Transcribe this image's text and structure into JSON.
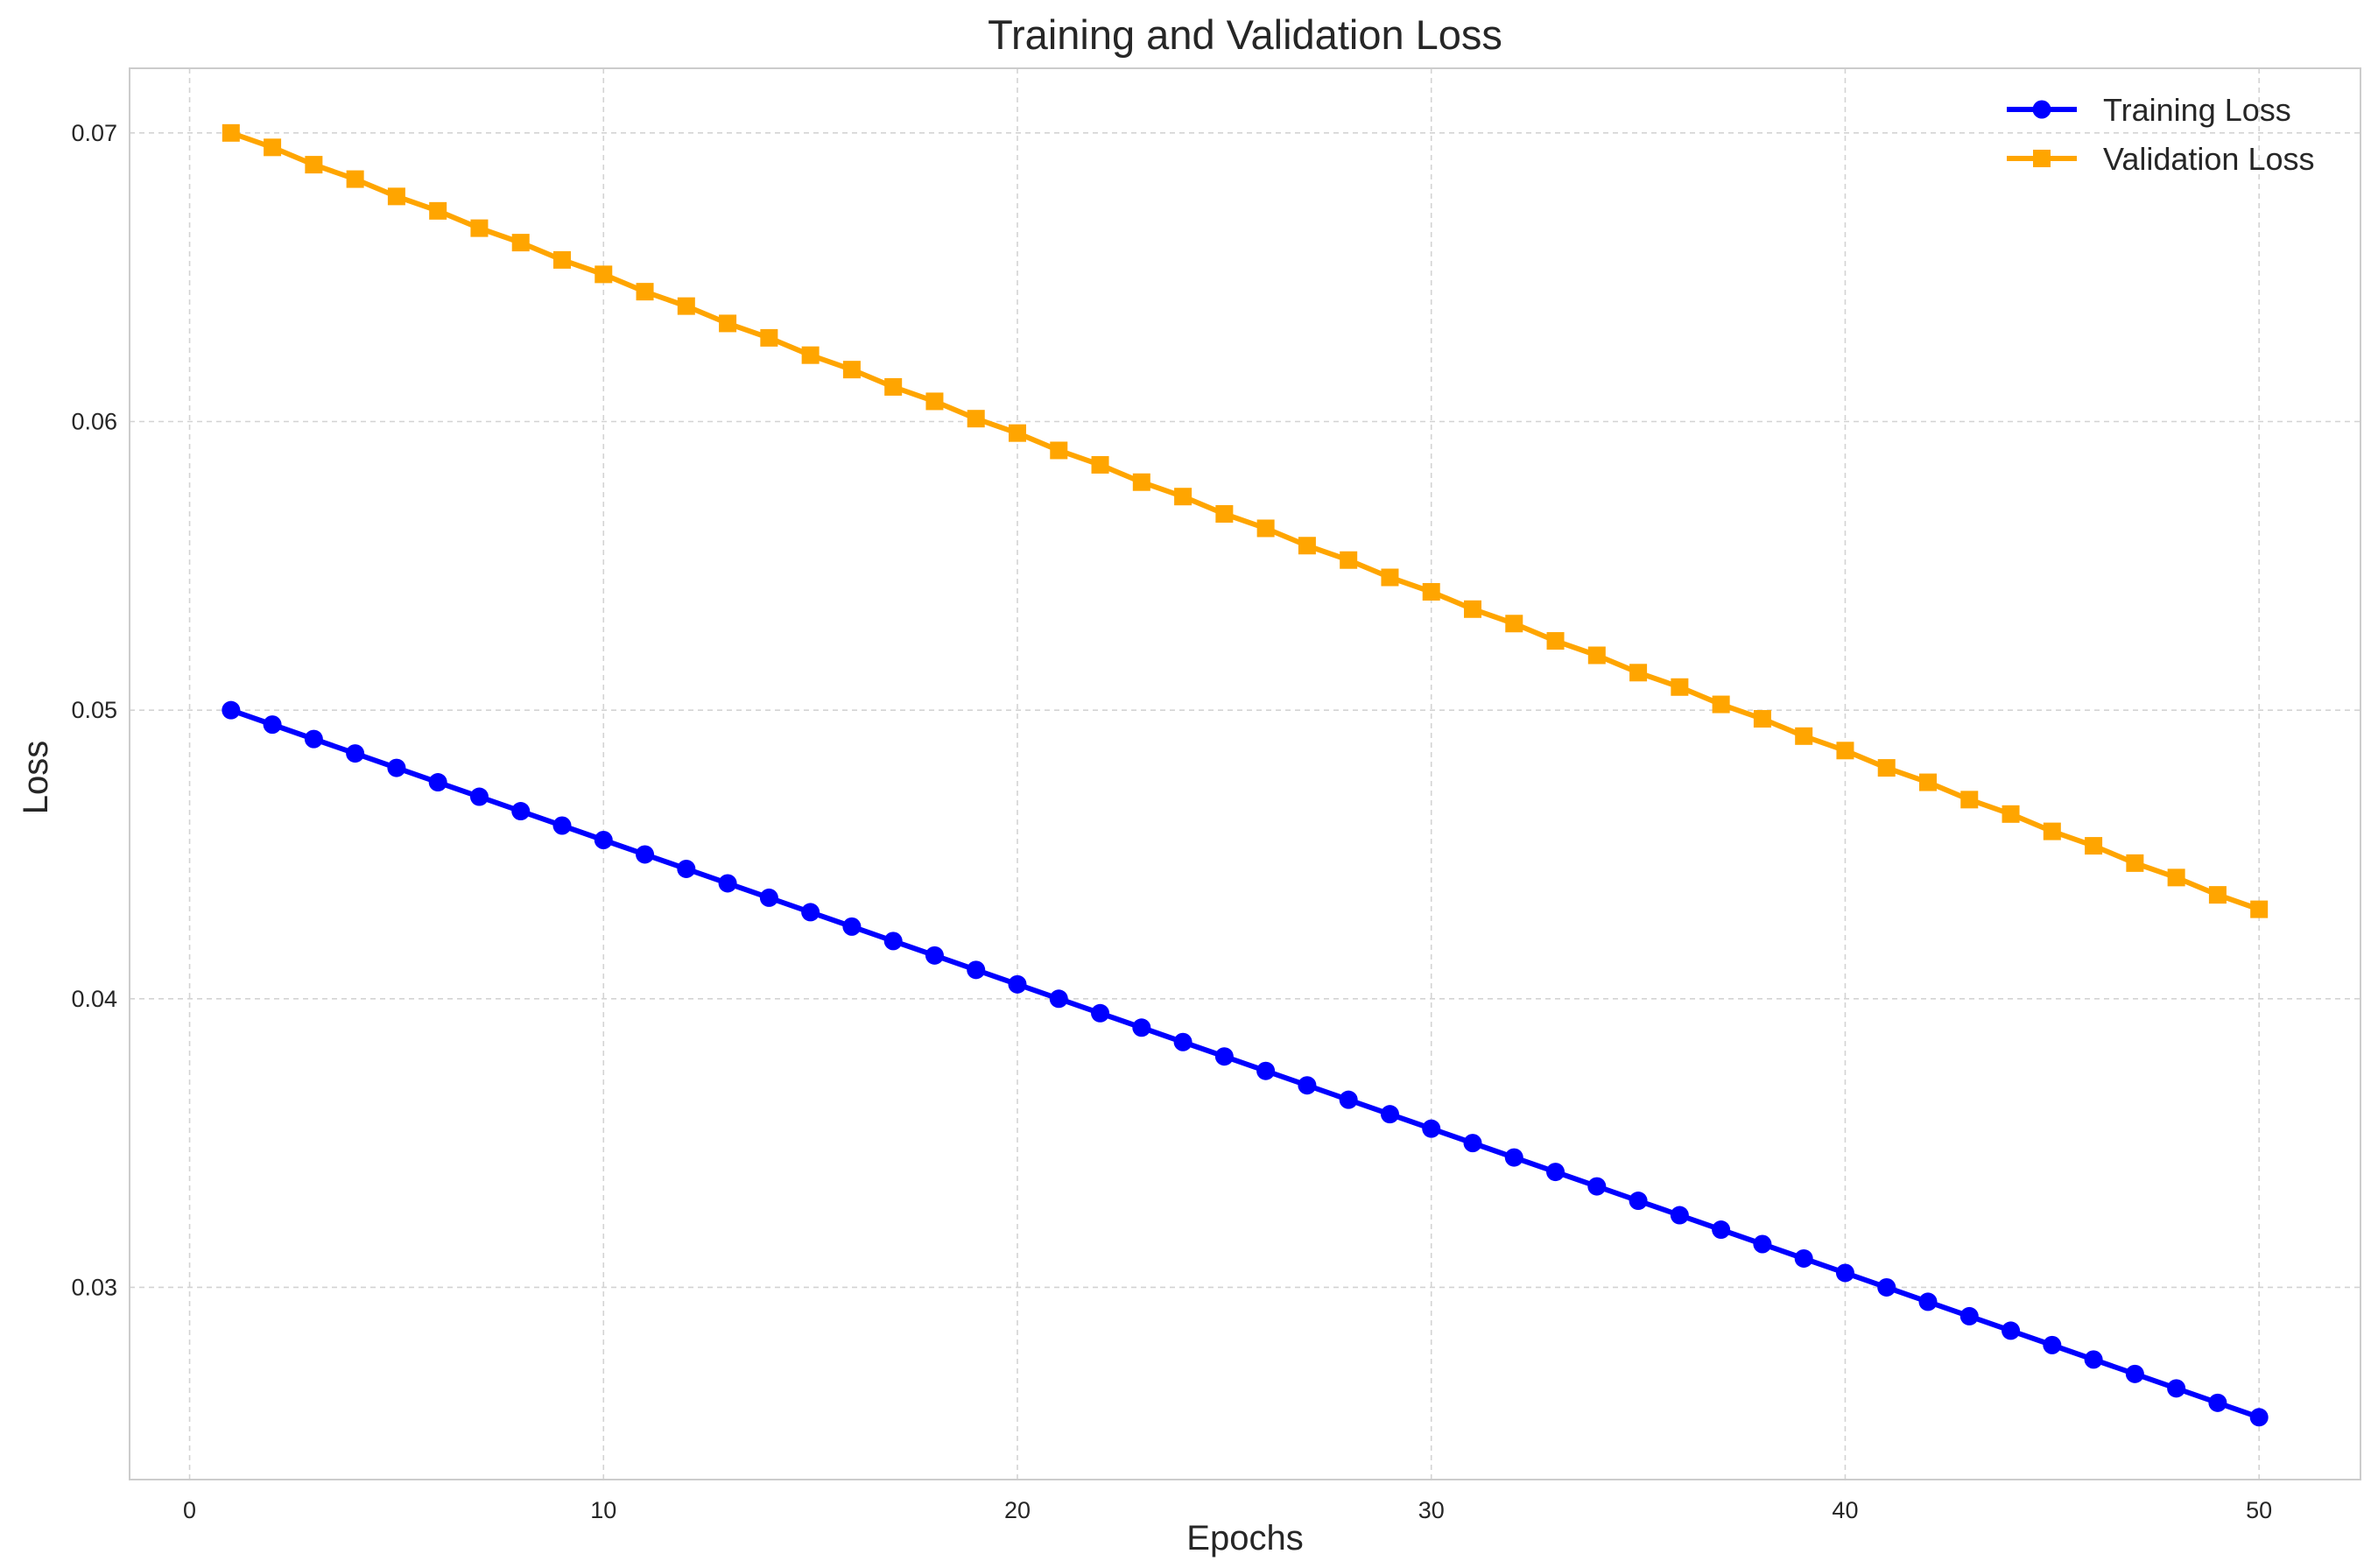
{
  "chart_data": {
    "type": "line",
    "title": "Training and Validation Loss",
    "xlabel": "Epochs",
    "ylabel": "Loss",
    "xlim": [
      -1.45,
      52.45
    ],
    "ylim": [
      0.02334,
      0.07224
    ],
    "xticks": [
      0,
      10,
      20,
      30,
      40,
      50
    ],
    "yticks": [
      0.03,
      0.04,
      0.05,
      0.06,
      0.07
    ],
    "xtick_labels": [
      "0",
      "10",
      "20",
      "30",
      "40",
      "50"
    ],
    "ytick_labels": [
      "0.03",
      "0.04",
      "0.05",
      "0.06",
      "0.07"
    ],
    "grid": true,
    "legend_position": "top-right",
    "series": [
      {
        "name": "Training Loss",
        "color": "#0000ff",
        "marker": "circle",
        "x": [
          1,
          2,
          3,
          4,
          5,
          6,
          7,
          8,
          9,
          10,
          11,
          12,
          13,
          14,
          15,
          16,
          17,
          18,
          19,
          20,
          21,
          22,
          23,
          24,
          25,
          26,
          27,
          28,
          29,
          30,
          31,
          32,
          33,
          34,
          35,
          36,
          37,
          38,
          39,
          40,
          41,
          42,
          43,
          44,
          45,
          46,
          47,
          48,
          49,
          50
        ],
        "values": [
          0.05,
          0.0495,
          0.049,
          0.0485,
          0.048,
          0.0475,
          0.047,
          0.0465,
          0.046,
          0.0455,
          0.045,
          0.0445,
          0.044,
          0.0435,
          0.043,
          0.0425,
          0.042,
          0.0415,
          0.041,
          0.0405,
          0.04,
          0.0395,
          0.039,
          0.0385,
          0.038,
          0.0375,
          0.037,
          0.0365,
          0.036,
          0.0355,
          0.035,
          0.0345,
          0.034,
          0.0335,
          0.033,
          0.0325,
          0.032,
          0.0315,
          0.031,
          0.0305,
          0.03,
          0.0295,
          0.029,
          0.0285,
          0.028,
          0.0275,
          0.027,
          0.0265,
          0.026,
          0.0255
        ]
      },
      {
        "name": "Validation Loss",
        "color": "#ffa500",
        "marker": "square",
        "x": [
          1,
          2,
          3,
          4,
          5,
          6,
          7,
          8,
          9,
          10,
          11,
          12,
          13,
          14,
          15,
          16,
          17,
          18,
          19,
          20,
          21,
          22,
          23,
          24,
          25,
          26,
          27,
          28,
          29,
          30,
          31,
          32,
          33,
          34,
          35,
          36,
          37,
          38,
          39,
          40,
          41,
          42,
          43,
          44,
          45,
          46,
          47,
          48,
          49,
          50
        ],
        "values": [
          0.07,
          0.0695,
          0.0689,
          0.0684,
          0.0678,
          0.0673,
          0.0667,
          0.0662,
          0.0656,
          0.0651,
          0.0645,
          0.064,
          0.0634,
          0.0629,
          0.0623,
          0.0618,
          0.0612,
          0.0607,
          0.0601,
          0.0596,
          0.059,
          0.0585,
          0.0579,
          0.0574,
          0.0568,
          0.0563,
          0.0557,
          0.0552,
          0.0546,
          0.0541,
          0.0535,
          0.053,
          0.0524,
          0.0519,
          0.0513,
          0.0508,
          0.0502,
          0.0497,
          0.0491,
          0.0486,
          0.048,
          0.0475,
          0.0469,
          0.0464,
          0.0458,
          0.0453,
          0.0447,
          0.0442,
          0.0436,
          0.0431
        ]
      }
    ]
  }
}
